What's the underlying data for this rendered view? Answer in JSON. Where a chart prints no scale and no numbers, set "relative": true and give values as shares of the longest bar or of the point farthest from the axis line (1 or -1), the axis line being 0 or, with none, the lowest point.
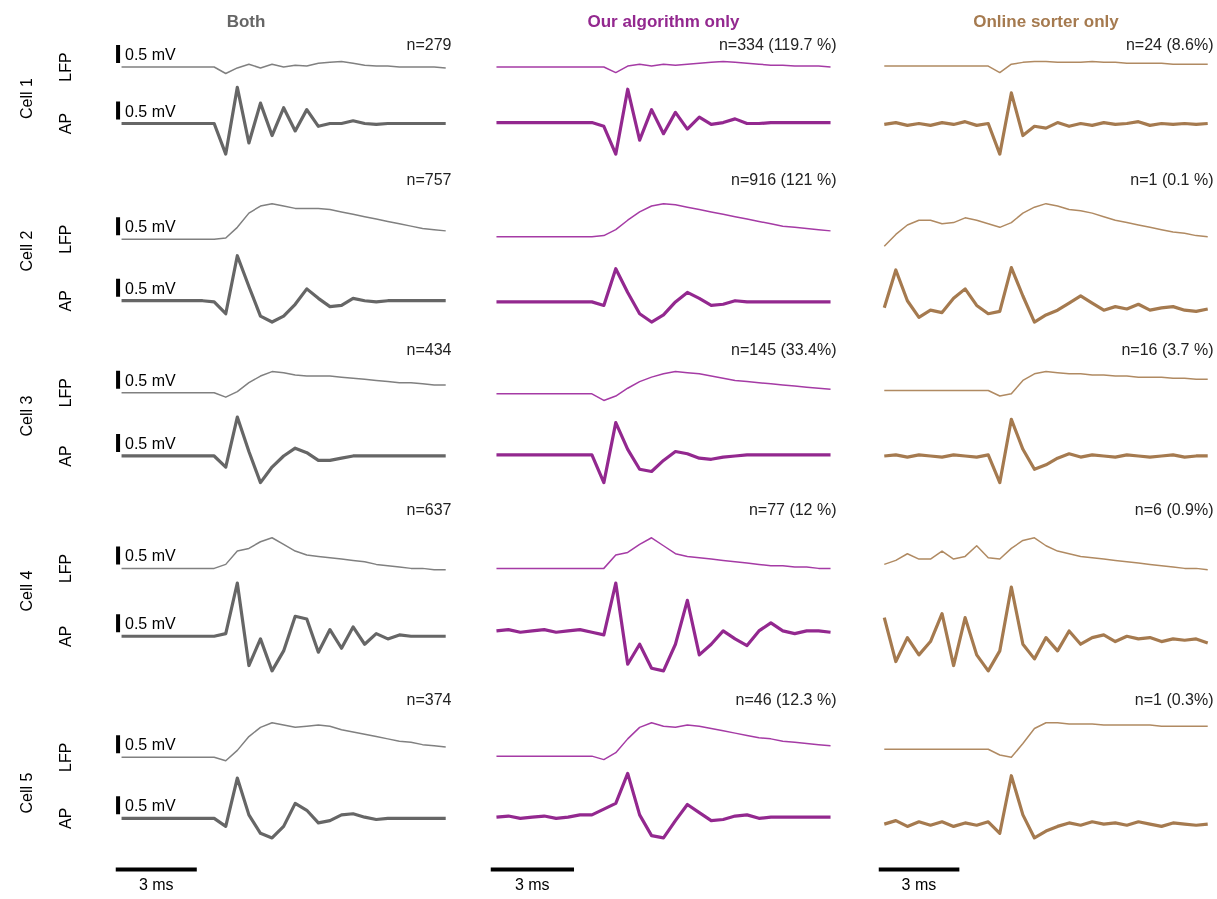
{
  "chart_data": [
    {
      "type": "line",
      "relative": true,
      "title": "Both",
      "subtitle": "n=279",
      "ylabel": "Cell 1",
      "annotations": [
        "0.5 mV",
        "0.5 mV"
      ],
      "categories": [
        null,
        null,
        null,
        null,
        null,
        null,
        null,
        null,
        null,
        null,
        null,
        null,
        null,
        null,
        null,
        null,
        null,
        null,
        null,
        null,
        null,
        null,
        null,
        null,
        null,
        null,
        null,
        null,
        null
      ],
      "series": [
        {
          "name": "LFP",
          "color": "#808080",
          "values": [
            0.94,
            0.94,
            0.94,
            0.94,
            0.94,
            0.94,
            0.94,
            0.94,
            0.94,
            0.87,
            0.93,
            0.97,
            0.93,
            0.97,
            0.94,
            0.96,
            0.95,
            0.98,
            0.99,
            1.0,
            0.98,
            0.96,
            0.95,
            0.95,
            0.94,
            0.94,
            0.94,
            0.94,
            0.93
          ]
        },
        {
          "name": "AP",
          "color": "#666666",
          "values": [
            0.33,
            0.33,
            0.33,
            0.33,
            0.33,
            0.33,
            0.33,
            0.33,
            0.33,
            0.0,
            0.72,
            0.12,
            0.55,
            0.2,
            0.5,
            0.25,
            0.48,
            0.3,
            0.33,
            0.33,
            0.36,
            0.33,
            0.32,
            0.33,
            0.33,
            0.33,
            0.33,
            0.33,
            0.33
          ]
        }
      ]
    },
    {
      "type": "line",
      "relative": true,
      "title": "Our algorithm only",
      "subtitle": "n=334 (119.7 %)",
      "categories": [
        null,
        null,
        null,
        null,
        null,
        null,
        null,
        null,
        null,
        null,
        null,
        null,
        null,
        null,
        null,
        null,
        null,
        null,
        null,
        null,
        null,
        null,
        null,
        null,
        null,
        null,
        null,
        null,
        null
      ],
      "series": [
        {
          "color": "#a53ba5",
          "values": [
            0.94,
            0.94,
            0.94,
            0.94,
            0.94,
            0.94,
            0.94,
            0.94,
            0.94,
            0.94,
            0.88,
            0.95,
            0.97,
            0.95,
            0.97,
            0.96,
            0.97,
            0.98,
            0.99,
            1.0,
            0.99,
            0.98,
            0.97,
            0.96,
            0.96,
            0.95,
            0.95,
            0.95,
            0.94
          ]
        },
        {
          "color": "#93288f",
          "values": [
            0.34,
            0.34,
            0.34,
            0.34,
            0.34,
            0.34,
            0.34,
            0.34,
            0.34,
            0.3,
            0.0,
            0.7,
            0.15,
            0.48,
            0.22,
            0.45,
            0.27,
            0.4,
            0.32,
            0.34,
            0.38,
            0.33,
            0.33,
            0.34,
            0.34,
            0.34,
            0.34,
            0.34,
            0.34
          ]
        }
      ]
    },
    {
      "type": "line",
      "relative": true,
      "title": "Online sorter only",
      "subtitle": "n=24 (8.6%)",
      "categories": [
        null,
        null,
        null,
        null,
        null,
        null,
        null,
        null,
        null,
        null,
        null,
        null,
        null,
        null,
        null,
        null,
        null,
        null,
        null,
        null,
        null,
        null,
        null,
        null,
        null,
        null,
        null,
        null,
        null
      ],
      "series": [
        {
          "color": "#b08a62",
          "values": [
            0.95,
            0.95,
            0.95,
            0.95,
            0.95,
            0.95,
            0.95,
            0.95,
            0.95,
            0.95,
            0.88,
            0.97,
            0.99,
            1.0,
            1.0,
            0.99,
            0.99,
            0.99,
            1.0,
            0.99,
            0.99,
            0.98,
            0.98,
            0.98,
            0.98,
            0.97,
            0.97,
            0.97,
            0.97
          ]
        },
        {
          "color": "#a57a4f",
          "values": [
            0.32,
            0.34,
            0.31,
            0.33,
            0.31,
            0.34,
            0.32,
            0.35,
            0.31,
            0.33,
            0.0,
            0.66,
            0.2,
            0.3,
            0.28,
            0.34,
            0.3,
            0.33,
            0.31,
            0.34,
            0.32,
            0.33,
            0.35,
            0.31,
            0.33,
            0.32,
            0.33,
            0.32,
            0.33
          ]
        }
      ]
    },
    {
      "type": "line",
      "relative": true,
      "subtitle": "n=757",
      "ylabel": "Cell 2",
      "annotations": [
        "0.5 mV",
        "0.5 mV"
      ],
      "categories": [
        null,
        null,
        null,
        null,
        null,
        null,
        null,
        null,
        null,
        null,
        null,
        null,
        null,
        null,
        null,
        null,
        null,
        null,
        null,
        null,
        null,
        null,
        null,
        null,
        null,
        null,
        null,
        null,
        null
      ],
      "series": [
        {
          "name": "LFP",
          "color": "#808080",
          "values": [
            0.7,
            0.7,
            0.7,
            0.7,
            0.7,
            0.7,
            0.7,
            0.7,
            0.7,
            0.71,
            0.8,
            0.92,
            0.98,
            1.0,
            0.98,
            0.96,
            0.96,
            0.96,
            0.95,
            0.93,
            0.91,
            0.89,
            0.87,
            0.85,
            0.83,
            0.81,
            0.79,
            0.78,
            0.77
          ]
        },
        {
          "name": "AP",
          "color": "#666666",
          "values": [
            0.18,
            0.18,
            0.18,
            0.18,
            0.18,
            0.18,
            0.18,
            0.18,
            0.17,
            0.07,
            0.56,
            0.3,
            0.05,
            0.0,
            0.05,
            0.15,
            0.28,
            0.2,
            0.13,
            0.14,
            0.2,
            0.18,
            0.17,
            0.18,
            0.18,
            0.18,
            0.18,
            0.18,
            0.18
          ]
        }
      ]
    },
    {
      "type": "line",
      "relative": true,
      "subtitle": "n=916 (121 %)",
      "categories": [
        null,
        null,
        null,
        null,
        null,
        null,
        null,
        null,
        null,
        null,
        null,
        null,
        null,
        null,
        null,
        null,
        null,
        null,
        null,
        null,
        null,
        null,
        null,
        null,
        null,
        null,
        null,
        null,
        null
      ],
      "series": [
        {
          "color": "#a53ba5",
          "values": [
            0.72,
            0.72,
            0.72,
            0.72,
            0.72,
            0.72,
            0.72,
            0.72,
            0.72,
            0.73,
            0.78,
            0.86,
            0.93,
            0.98,
            1.0,
            0.99,
            0.97,
            0.95,
            0.93,
            0.91,
            0.89,
            0.87,
            0.85,
            0.83,
            0.81,
            0.8,
            0.79,
            0.78,
            0.77
          ]
        },
        {
          "color": "#93288f",
          "values": [
            0.17,
            0.17,
            0.17,
            0.17,
            0.17,
            0.17,
            0.17,
            0.17,
            0.17,
            0.14,
            0.45,
            0.25,
            0.07,
            0.0,
            0.06,
            0.17,
            0.25,
            0.2,
            0.14,
            0.15,
            0.18,
            0.17,
            0.17,
            0.17,
            0.17,
            0.17,
            0.17,
            0.17,
            0.17
          ]
        }
      ]
    },
    {
      "type": "line",
      "relative": true,
      "subtitle": "n=1 (0.1 %)",
      "categories": [
        null,
        null,
        null,
        null,
        null,
        null,
        null,
        null,
        null,
        null,
        null,
        null,
        null,
        null,
        null,
        null,
        null,
        null,
        null,
        null,
        null,
        null,
        null,
        null,
        null,
        null,
        null,
        null,
        null
      ],
      "series": [
        {
          "color": "#b08a62",
          "values": [
            0.64,
            0.74,
            0.82,
            0.86,
            0.86,
            0.83,
            0.84,
            0.88,
            0.86,
            0.83,
            0.8,
            0.84,
            0.92,
            0.97,
            1.0,
            0.98,
            0.95,
            0.94,
            0.92,
            0.89,
            0.86,
            0.84,
            0.82,
            0.8,
            0.78,
            0.76,
            0.75,
            0.73,
            0.72
          ]
        },
        {
          "color": "#a57a4f",
          "values": [
            0.12,
            0.44,
            0.18,
            0.04,
            0.1,
            0.08,
            0.2,
            0.28,
            0.14,
            0.07,
            0.09,
            0.46,
            0.22,
            0.0,
            0.06,
            0.1,
            0.16,
            0.22,
            0.16,
            0.1,
            0.13,
            0.11,
            0.15,
            0.1,
            0.12,
            0.13,
            0.1,
            0.09,
            0.11
          ]
        }
      ]
    },
    {
      "type": "line",
      "relative": true,
      "subtitle": "n=434",
      "ylabel": "Cell 3",
      "annotations": [
        "0.5 mV",
        "0.5 mV"
      ],
      "categories": [
        null,
        null,
        null,
        null,
        null,
        null,
        null,
        null,
        null,
        null,
        null,
        null,
        null,
        null,
        null,
        null,
        null,
        null,
        null,
        null,
        null,
        null,
        null,
        null,
        null,
        null,
        null,
        null,
        null
      ],
      "series": [
        {
          "name": "LFP",
          "color": "#808080",
          "values": [
            0.81,
            0.81,
            0.81,
            0.81,
            0.81,
            0.81,
            0.81,
            0.81,
            0.81,
            0.77,
            0.82,
            0.9,
            0.96,
            1.0,
            0.99,
            0.97,
            0.96,
            0.96,
            0.96,
            0.95,
            0.94,
            0.93,
            0.92,
            0.91,
            0.9,
            0.9,
            0.89,
            0.88,
            0.88
          ]
        },
        {
          "name": "AP",
          "color": "#666666",
          "values": [
            0.24,
            0.24,
            0.24,
            0.24,
            0.24,
            0.24,
            0.24,
            0.24,
            0.24,
            0.14,
            0.59,
            0.28,
            0.0,
            0.14,
            0.24,
            0.31,
            0.27,
            0.2,
            0.2,
            0.22,
            0.24,
            0.24,
            0.24,
            0.24,
            0.24,
            0.24,
            0.24,
            0.24,
            0.24
          ]
        }
      ]
    },
    {
      "type": "line",
      "relative": true,
      "subtitle": "n=145 (33.4%)",
      "categories": [
        null,
        null,
        null,
        null,
        null,
        null,
        null,
        null,
        null,
        null,
        null,
        null,
        null,
        null,
        null,
        null,
        null,
        null,
        null,
        null,
        null,
        null,
        null,
        null,
        null,
        null,
        null,
        null,
        null
      ],
      "series": [
        {
          "color": "#a53ba5",
          "values": [
            0.8,
            0.8,
            0.8,
            0.8,
            0.8,
            0.8,
            0.8,
            0.8,
            0.8,
            0.74,
            0.78,
            0.85,
            0.91,
            0.95,
            0.98,
            1.0,
            0.99,
            0.98,
            0.96,
            0.94,
            0.92,
            0.91,
            0.9,
            0.89,
            0.88,
            0.87,
            0.86,
            0.85,
            0.84
          ]
        },
        {
          "color": "#93288f",
          "values": [
            0.25,
            0.25,
            0.25,
            0.25,
            0.25,
            0.25,
            0.25,
            0.25,
            0.25,
            0.0,
            0.54,
            0.3,
            0.12,
            0.1,
            0.2,
            0.28,
            0.26,
            0.22,
            0.21,
            0.23,
            0.24,
            0.25,
            0.25,
            0.25,
            0.25,
            0.25,
            0.25,
            0.25,
            0.25
          ]
        }
      ]
    },
    {
      "type": "line",
      "relative": true,
      "subtitle": "n=16 (3.7 %)",
      "categories": [
        null,
        null,
        null,
        null,
        null,
        null,
        null,
        null,
        null,
        null,
        null,
        null,
        null,
        null,
        null,
        null,
        null,
        null,
        null,
        null,
        null,
        null,
        null,
        null,
        null,
        null,
        null,
        null,
        null
      ],
      "series": [
        {
          "color": "#b08a62",
          "values": [
            0.83,
            0.83,
            0.83,
            0.83,
            0.83,
            0.83,
            0.83,
            0.83,
            0.83,
            0.83,
            0.78,
            0.8,
            0.92,
            0.98,
            1.0,
            0.99,
            0.98,
            0.98,
            0.97,
            0.97,
            0.96,
            0.96,
            0.95,
            0.95,
            0.95,
            0.94,
            0.94,
            0.93,
            0.93
          ]
        },
        {
          "color": "#a57a4f",
          "values": [
            0.24,
            0.25,
            0.23,
            0.25,
            0.24,
            0.23,
            0.25,
            0.24,
            0.23,
            0.25,
            0.0,
            0.57,
            0.3,
            0.12,
            0.16,
            0.22,
            0.26,
            0.23,
            0.25,
            0.24,
            0.23,
            0.25,
            0.24,
            0.23,
            0.24,
            0.25,
            0.23,
            0.24,
            0.24
          ]
        }
      ]
    },
    {
      "type": "line",
      "relative": true,
      "subtitle": "n=637",
      "ylabel": "Cell 4",
      "annotations": [
        "0.5 mV",
        "0.5 mV"
      ],
      "categories": [
        null,
        null,
        null,
        null,
        null,
        null,
        null,
        null,
        null,
        null,
        null,
        null,
        null,
        null,
        null,
        null,
        null,
        null,
        null,
        null,
        null,
        null,
        null,
        null,
        null,
        null,
        null,
        null,
        null
      ],
      "series": [
        {
          "name": "LFP",
          "color": "#808080",
          "values": [
            0.77,
            0.77,
            0.77,
            0.77,
            0.77,
            0.77,
            0.77,
            0.77,
            0.77,
            0.8,
            0.9,
            0.92,
            0.97,
            1.0,
            0.95,
            0.9,
            0.87,
            0.86,
            0.85,
            0.84,
            0.83,
            0.82,
            0.8,
            0.79,
            0.78,
            0.77,
            0.77,
            0.76,
            0.76
          ]
        },
        {
          "name": "AP",
          "color": "#666666",
          "values": [
            0.26,
            0.26,
            0.26,
            0.26,
            0.26,
            0.26,
            0.26,
            0.26,
            0.26,
            0.28,
            0.66,
            0.04,
            0.24,
            0.0,
            0.15,
            0.41,
            0.39,
            0.14,
            0.31,
            0.17,
            0.33,
            0.2,
            0.28,
            0.24,
            0.27,
            0.26,
            0.26,
            0.26,
            0.26
          ]
        }
      ]
    },
    {
      "type": "line",
      "relative": true,
      "subtitle": "n=77 (12 %)",
      "categories": [
        null,
        null,
        null,
        null,
        null,
        null,
        null,
        null,
        null,
        null,
        null,
        null,
        null,
        null,
        null,
        null,
        null,
        null,
        null,
        null,
        null,
        null,
        null,
        null,
        null,
        null,
        null,
        null,
        null
      ],
      "series": [
        {
          "color": "#a53ba5",
          "values": [
            0.77,
            0.77,
            0.77,
            0.77,
            0.77,
            0.77,
            0.77,
            0.77,
            0.77,
            0.77,
            0.87,
            0.89,
            0.95,
            1.0,
            0.94,
            0.88,
            0.86,
            0.85,
            0.84,
            0.83,
            0.82,
            0.81,
            0.8,
            0.79,
            0.79,
            0.78,
            0.78,
            0.77,
            0.77
          ]
        },
        {
          "color": "#93288f",
          "values": [
            0.3,
            0.31,
            0.29,
            0.3,
            0.31,
            0.29,
            0.3,
            0.31,
            0.29,
            0.27,
            0.66,
            0.05,
            0.2,
            0.02,
            0.0,
            0.2,
            0.53,
            0.12,
            0.2,
            0.3,
            0.24,
            0.19,
            0.3,
            0.36,
            0.3,
            0.28,
            0.3,
            0.3,
            0.29
          ]
        }
      ]
    },
    {
      "type": "line",
      "relative": true,
      "subtitle": "n=6 (0.9%)",
      "categories": [
        null,
        null,
        null,
        null,
        null,
        null,
        null,
        null,
        null,
        null,
        null,
        null,
        null,
        null,
        null,
        null,
        null,
        null,
        null,
        null,
        null,
        null,
        null,
        null,
        null,
        null,
        null,
        null,
        null
      ],
      "series": [
        {
          "color": "#b08a62",
          "values": [
            0.8,
            0.83,
            0.88,
            0.84,
            0.84,
            0.9,
            0.84,
            0.86,
            0.94,
            0.85,
            0.84,
            0.92,
            0.98,
            1.0,
            0.94,
            0.9,
            0.88,
            0.86,
            0.85,
            0.84,
            0.83,
            0.82,
            0.81,
            0.8,
            0.79,
            0.78,
            0.77,
            0.77,
            0.76
          ]
        },
        {
          "color": "#a57a4f",
          "values": [
            0.4,
            0.07,
            0.25,
            0.12,
            0.22,
            0.43,
            0.04,
            0.4,
            0.12,
            0.0,
            0.15,
            0.63,
            0.2,
            0.09,
            0.25,
            0.15,
            0.3,
            0.2,
            0.25,
            0.27,
            0.22,
            0.26,
            0.24,
            0.25,
            0.22,
            0.24,
            0.23,
            0.24,
            0.21
          ]
        }
      ]
    },
    {
      "type": "line",
      "relative": true,
      "subtitle": "n=374",
      "ylabel": "Cell 5",
      "xlabel": "3 ms",
      "annotations": [
        "0.5 mV",
        "0.5 mV"
      ],
      "categories": [
        null,
        null,
        null,
        null,
        null,
        null,
        null,
        null,
        null,
        null,
        null,
        null,
        null,
        null,
        null,
        null,
        null,
        null,
        null,
        null,
        null,
        null,
        null,
        null,
        null,
        null,
        null,
        null,
        null
      ],
      "series": [
        {
          "name": "LFP",
          "color": "#808080",
          "values": [
            0.7,
            0.7,
            0.7,
            0.7,
            0.7,
            0.7,
            0.7,
            0.7,
            0.7,
            0.67,
            0.76,
            0.88,
            0.96,
            1.0,
            0.98,
            0.96,
            0.97,
            0.98,
            0.97,
            0.94,
            0.92,
            0.9,
            0.88,
            0.86,
            0.84,
            0.83,
            0.81,
            0.8,
            0.79
          ]
        },
        {
          "name": "AP",
          "color": "#666666",
          "values": [
            0.17,
            0.17,
            0.17,
            0.17,
            0.17,
            0.17,
            0.17,
            0.17,
            0.17,
            0.1,
            0.52,
            0.2,
            0.04,
            0.0,
            0.1,
            0.3,
            0.24,
            0.13,
            0.15,
            0.2,
            0.21,
            0.18,
            0.16,
            0.17,
            0.17,
            0.17,
            0.17,
            0.17,
            0.17
          ]
        }
      ]
    },
    {
      "type": "line",
      "relative": true,
      "subtitle": "n=46 (12.3 %)",
      "xlabel": "3 ms",
      "categories": [
        null,
        null,
        null,
        null,
        null,
        null,
        null,
        null,
        null,
        null,
        null,
        null,
        null,
        null,
        null,
        null,
        null,
        null,
        null,
        null,
        null,
        null,
        null,
        null,
        null,
        null,
        null,
        null,
        null
      ],
      "series": [
        {
          "color": "#a53ba5",
          "values": [
            0.71,
            0.71,
            0.71,
            0.71,
            0.71,
            0.71,
            0.71,
            0.71,
            0.71,
            0.68,
            0.74,
            0.86,
            0.96,
            1.0,
            0.97,
            0.96,
            0.98,
            0.97,
            0.95,
            0.93,
            0.91,
            0.89,
            0.87,
            0.86,
            0.84,
            0.83,
            0.82,
            0.81,
            0.8
          ]
        },
        {
          "color": "#93288f",
          "values": [
            0.18,
            0.19,
            0.17,
            0.18,
            0.19,
            0.17,
            0.18,
            0.2,
            0.2,
            0.25,
            0.3,
            0.56,
            0.2,
            0.02,
            0.0,
            0.15,
            0.29,
            0.22,
            0.15,
            0.16,
            0.19,
            0.2,
            0.17,
            0.18,
            0.18,
            0.18,
            0.18,
            0.18,
            0.18
          ]
        }
      ]
    },
    {
      "type": "line",
      "relative": true,
      "subtitle": "n=1 (0.3%)",
      "xlabel": "3 ms",
      "categories": [
        null,
        null,
        null,
        null,
        null,
        null,
        null,
        null,
        null,
        null,
        null,
        null,
        null,
        null,
        null,
        null,
        null,
        null,
        null,
        null,
        null,
        null,
        null,
        null,
        null,
        null,
        null,
        null,
        null
      ],
      "series": [
        {
          "color": "#b08a62",
          "values": [
            0.77,
            0.77,
            0.77,
            0.77,
            0.77,
            0.77,
            0.77,
            0.77,
            0.77,
            0.77,
            0.72,
            0.7,
            0.82,
            0.95,
            1.0,
            1.0,
            0.99,
            0.99,
            0.99,
            0.98,
            0.98,
            0.98,
            0.98,
            0.98,
            0.97,
            0.97,
            0.97,
            0.97,
            0.97
          ]
        },
        {
          "color": "#a57a4f",
          "values": [
            0.12,
            0.15,
            0.1,
            0.14,
            0.11,
            0.14,
            0.1,
            0.13,
            0.11,
            0.14,
            0.04,
            0.54,
            0.2,
            0.0,
            0.06,
            0.1,
            0.13,
            0.11,
            0.14,
            0.12,
            0.13,
            0.11,
            0.14,
            0.12,
            0.1,
            0.13,
            0.12,
            0.11,
            0.12
          ]
        }
      ]
    }
  ]
}
